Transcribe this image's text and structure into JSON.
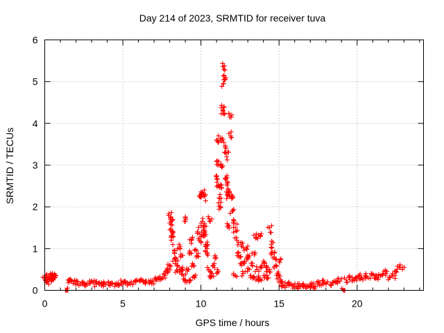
{
  "chart_data": {
    "type": "scatter",
    "title": "Day 214 of 2023, SRMTID for receiver tuva",
    "xlabel": "GPS time / hours",
    "ylabel": "SRMTID / TECUs",
    "xlim": [
      0,
      24.25
    ],
    "ylim": [
      0,
      6
    ],
    "xticks": [
      0,
      5,
      10,
      15,
      20
    ],
    "yticks": [
      0,
      1,
      2,
      3,
      4,
      5,
      6
    ],
    "grid": true,
    "marker": "+",
    "color": "#ff0000",
    "series": [
      {
        "name": "SRMTID",
        "x": [
          0.0,
          0.1,
          0.2,
          0.3,
          0.4,
          0.5,
          0.6,
          0.7,
          1.4,
          1.5,
          1.7,
          1.9,
          2.1,
          2.3,
          2.5,
          2.7,
          2.9,
          3.1,
          3.3,
          3.5,
          3.7,
          3.9,
          4.1,
          4.3,
          4.5,
          4.7,
          4.9,
          5.1,
          5.3,
          5.5,
          5.7,
          5.9,
          6.1,
          6.3,
          6.5,
          6.7,
          6.9,
          7.1,
          7.3,
          7.5,
          7.7,
          7.8,
          7.9,
          8.0,
          8.05,
          8.1,
          8.15,
          8.2,
          8.3,
          8.4,
          8.5,
          8.6,
          8.7,
          8.8,
          8.9,
          9.0,
          9.1,
          9.2,
          9.3,
          9.4,
          9.5,
          9.6,
          9.7,
          9.8,
          9.9,
          10.0,
          10.05,
          10.1,
          10.15,
          10.2,
          10.25,
          10.3,
          10.4,
          10.5,
          10.6,
          10.7,
          10.8,
          10.9,
          11.0,
          11.05,
          11.1,
          11.15,
          11.2,
          11.25,
          11.3,
          11.35,
          11.4,
          11.42,
          11.45,
          11.5,
          11.55,
          11.6,
          11.65,
          11.7,
          11.75,
          11.8,
          11.85,
          11.9,
          11.95,
          12.0,
          12.1,
          12.2,
          12.3,
          12.4,
          12.5,
          12.6,
          12.7,
          12.8,
          12.9,
          13.0,
          13.1,
          13.2,
          13.3,
          13.4,
          13.5,
          13.6,
          13.7,
          13.8,
          13.9,
          14.0,
          14.1,
          14.2,
          14.3,
          14.4,
          14.5,
          14.6,
          14.7,
          14.8,
          14.9,
          15.0,
          15.1,
          15.2,
          15.3,
          15.5,
          15.7,
          15.9,
          16.1,
          16.3,
          16.5,
          16.7,
          16.9,
          17.1,
          17.3,
          17.5,
          17.7,
          17.9,
          18.1,
          18.3,
          18.5,
          18.7,
          18.9,
          19.15,
          19.3,
          19.5,
          19.7,
          19.9,
          20.1,
          20.3,
          20.5,
          20.7,
          20.9,
          21.1,
          21.3,
          21.5,
          21.7,
          21.9,
          22.1,
          22.3,
          22.5,
          22.7,
          22.9,
          0.15,
          0.35,
          0.55,
          8.05,
          8.1,
          8.3,
          8.5,
          8.7,
          9.3,
          9.7,
          10.1,
          10.2,
          10.6,
          11.1,
          11.3,
          11.6,
          11.75,
          11.8,
          12.2,
          12.6,
          13.0,
          13.4,
          13.8,
          14.2,
          14.6,
          15.0,
          9.0,
          10.4,
          14.4
        ],
        "y": [
          0.3,
          0.35,
          0.22,
          0.3,
          0.25,
          0.3,
          0.32,
          0.35,
          0.0,
          0.25,
          0.24,
          0.22,
          0.2,
          0.15,
          0.18,
          0.17,
          0.16,
          0.18,
          0.15,
          0.17,
          0.16,
          0.14,
          0.18,
          0.16,
          0.15,
          0.17,
          0.18,
          0.2,
          0.18,
          0.15,
          0.2,
          0.25,
          0.22,
          0.2,
          0.22,
          0.18,
          0.22,
          0.25,
          0.3,
          0.28,
          0.35,
          0.45,
          0.5,
          0.6,
          1.7,
          1.65,
          1.4,
          1.3,
          0.9,
          0.7,
          0.6,
          1.1,
          0.8,
          0.5,
          0.35,
          0.25,
          0.2,
          0.5,
          0.9,
          1.2,
          0.6,
          0.3,
          0.8,
          1.4,
          1.2,
          2.3,
          2.25,
          1.65,
          1.5,
          1.45,
          1.3,
          1.1,
          0.9,
          0.5,
          0.3,
          0.4,
          0.6,
          0.8,
          3.6,
          2.65,
          3.0,
          2.5,
          2.2,
          2.0,
          3.02,
          3.65,
          4.32,
          4.3,
          4.95,
          5.38,
          5.05,
          3.4,
          3.2,
          2.6,
          2.4,
          2.35,
          4.15,
          3.7,
          2.2,
          1.9,
          1.6,
          1.5,
          1.2,
          0.9,
          0.8,
          0.6,
          0.4,
          0.7,
          1.0,
          0.8,
          0.5,
          0.35,
          0.6,
          0.9,
          1.25,
          0.5,
          0.3,
          0.25,
          0.6,
          0.7,
          0.35,
          0.3,
          0.5,
          1.5,
          1.1,
          0.9,
          0.8,
          0.6,
          0.4,
          0.3,
          0.2,
          0.15,
          0.1,
          0.12,
          0.15,
          0.1,
          0.08,
          0.12,
          0.1,
          0.08,
          0.1,
          0.12,
          0.1,
          0.15,
          0.12,
          0.18,
          0.2,
          0.15,
          0.18,
          0.2,
          0.22,
          0.0,
          0.25,
          0.3,
          0.25,
          0.3,
          0.35,
          0.3,
          0.35,
          0.3,
          0.4,
          0.35,
          0.3,
          0.35,
          0.4,
          0.45,
          0.3,
          0.35,
          0.45,
          0.55,
          0.5,
          0.2,
          0.4,
          0.25,
          1.75,
          1.2,
          0.75,
          0.45,
          0.5,
          0.25,
          0.95,
          2.35,
          2.25,
          1.65,
          0.45,
          2.45,
          2.65,
          2.3,
          1.55,
          0.35,
          1.05,
          0.75,
          0.3,
          1.3,
          0.55,
          0.9,
          0.7,
          1.65,
          1.0,
          0.5
        ]
      }
    ],
    "outliers": [
      {
        "x": 1.4,
        "y": 0.0
      },
      {
        "x": 19.15,
        "y": 0.0
      }
    ]
  }
}
